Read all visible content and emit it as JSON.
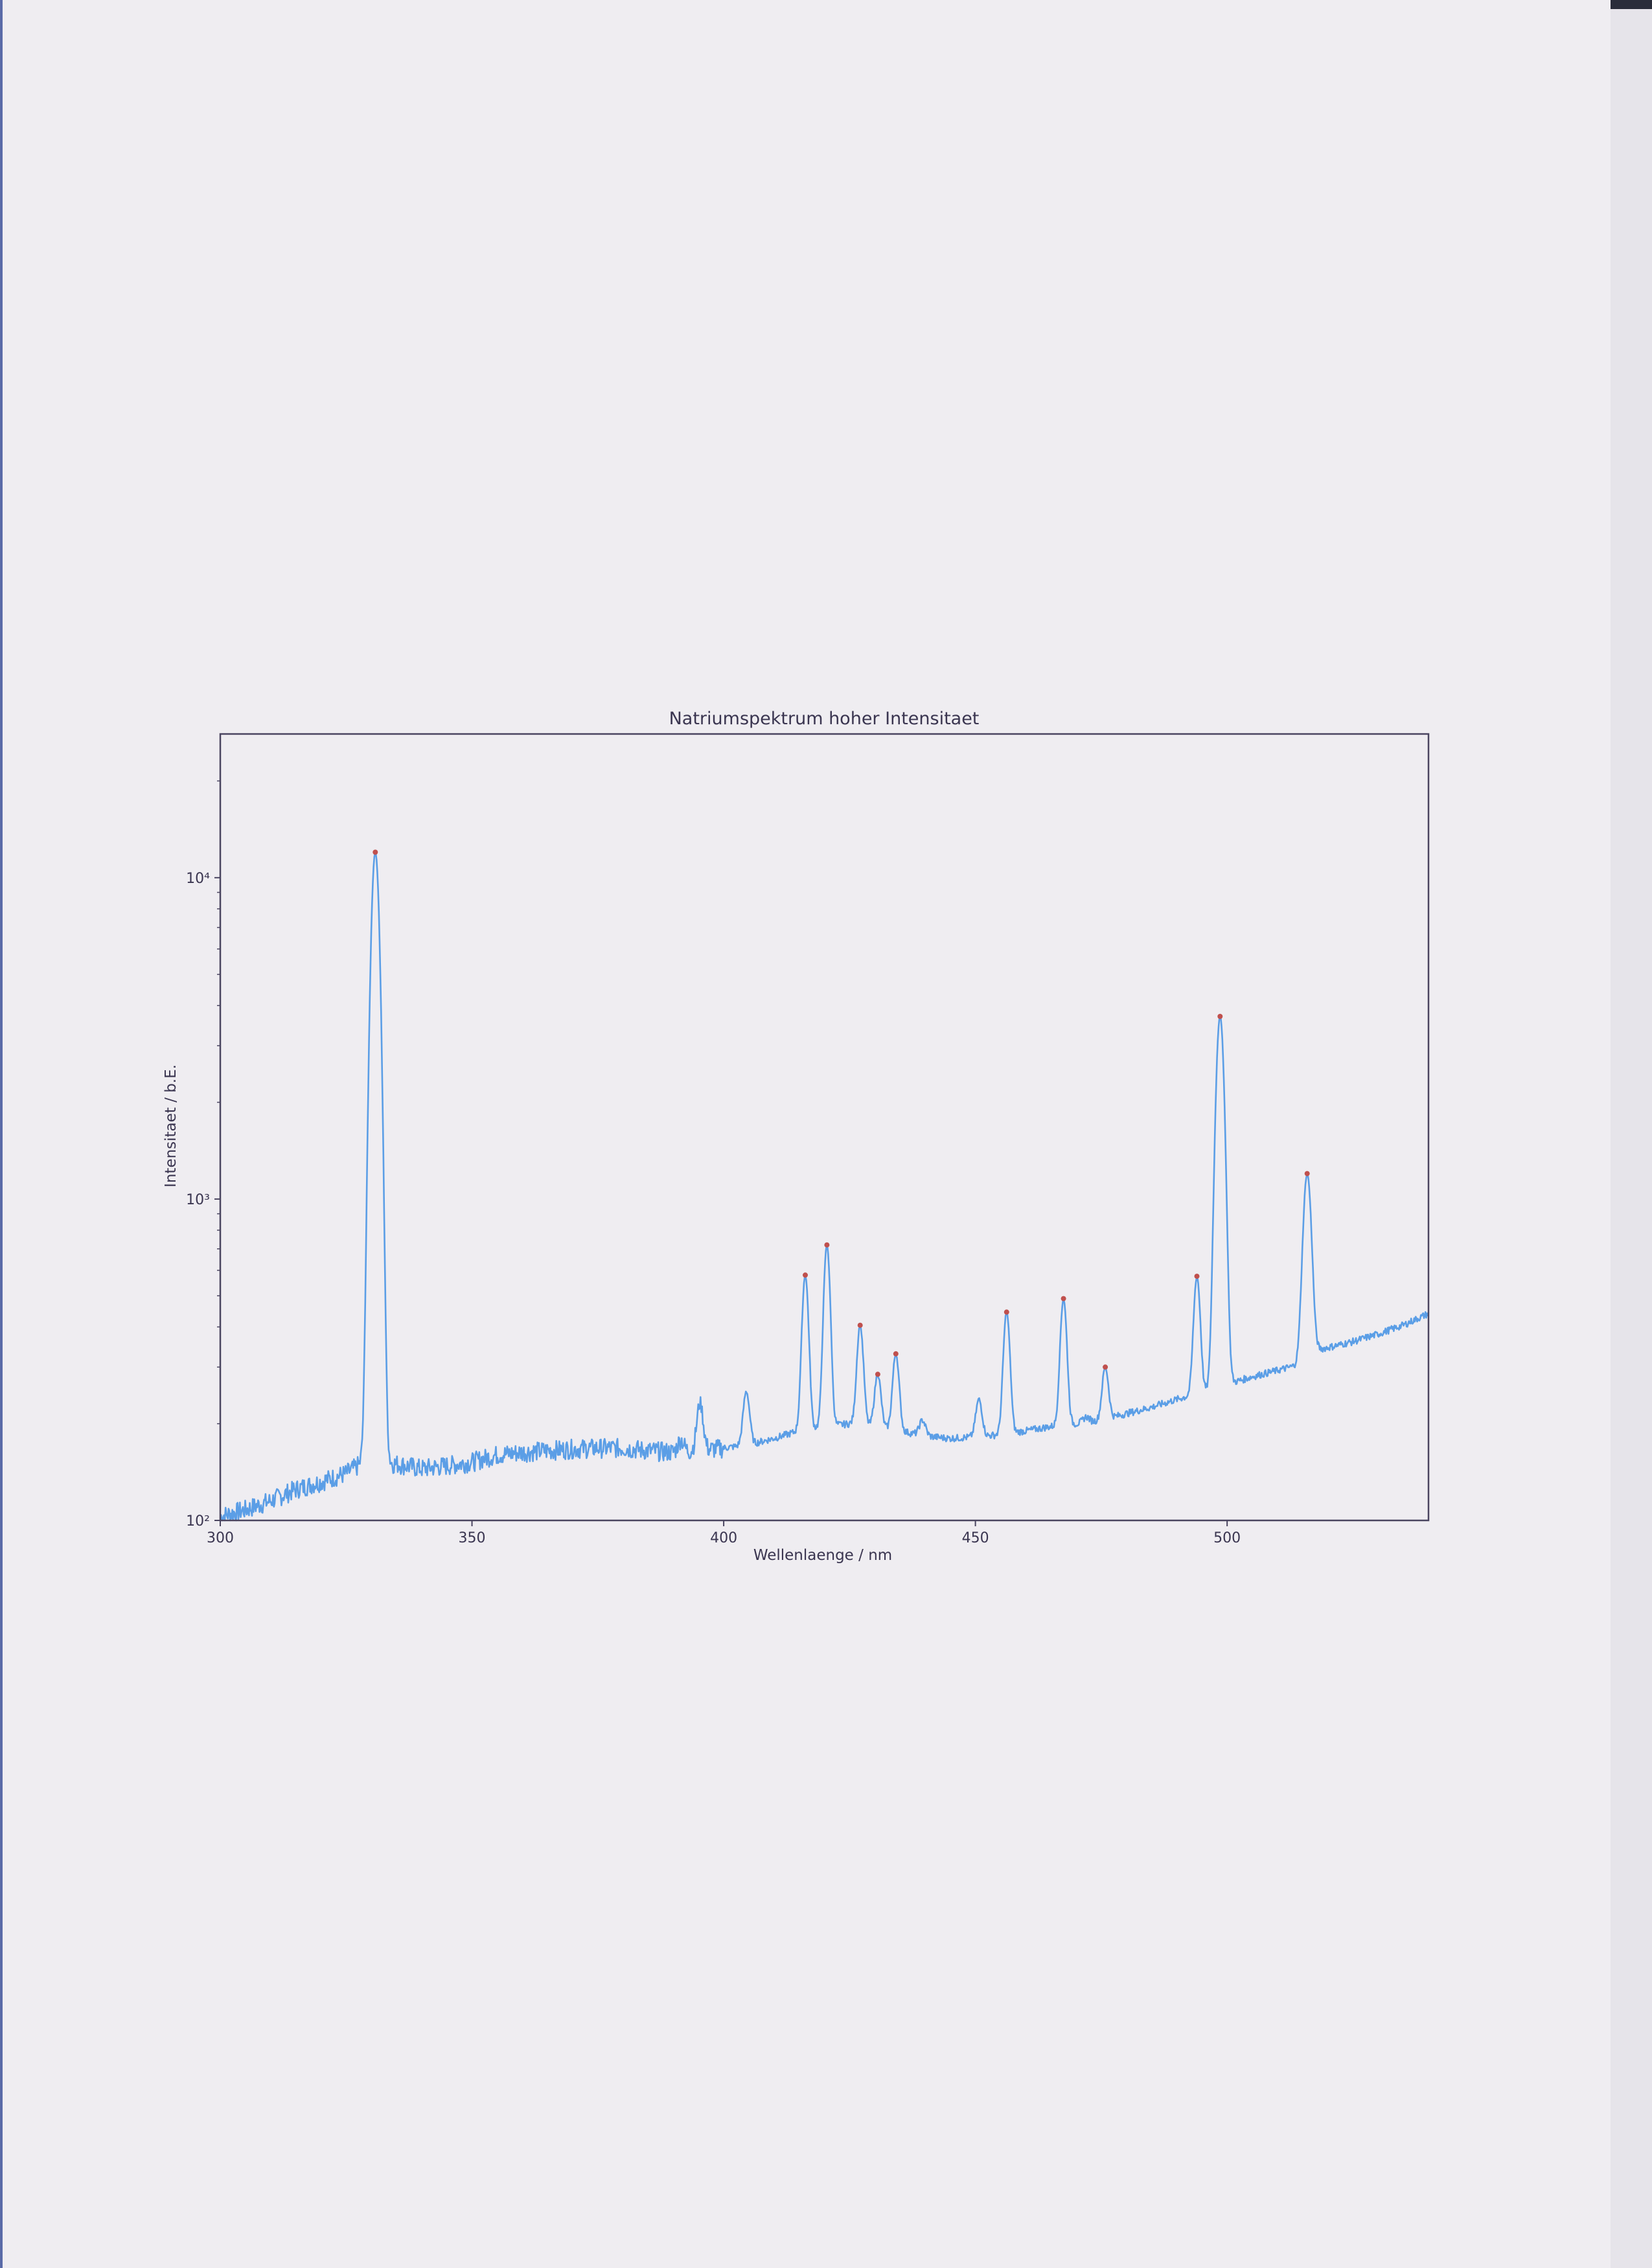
{
  "chart_data": {
    "type": "line",
    "title": "Natriumspektrum hoher Intensitaet",
    "xlabel": "Wellenlaenge / nm",
    "ylabel": "Intensitaet / b.E.",
    "xlim": [
      300,
      540
    ],
    "ylim": [
      100,
      28000
    ],
    "yscale": "log",
    "xticks": [
      300,
      350,
      400,
      450,
      500
    ],
    "xtick_labels": [
      "300",
      "350",
      "400",
      "450",
      "500"
    ],
    "yticks": [
      100,
      1000,
      10000
    ],
    "ytick_labels": [
      "10²",
      "10³",
      "10⁴"
    ],
    "grid": false,
    "line_color": "#5b9ee6",
    "marker_color": "#c0504d",
    "baseline": [
      [
        300,
        103
      ],
      [
        305,
        108
      ],
      [
        310,
        115
      ],
      [
        315,
        125
      ],
      [
        320,
        132
      ],
      [
        325,
        140
      ],
      [
        328,
        150
      ],
      [
        335,
        150
      ],
      [
        340,
        145
      ],
      [
        345,
        148
      ],
      [
        350,
        152
      ],
      [
        355,
        160
      ],
      [
        360,
        163
      ],
      [
        365,
        165
      ],
      [
        370,
        167
      ],
      [
        375,
        168
      ],
      [
        380,
        168
      ],
      [
        385,
        165
      ],
      [
        390,
        163
      ],
      [
        395,
        165
      ],
      [
        400,
        168
      ],
      [
        405,
        172
      ],
      [
        410,
        180
      ],
      [
        415,
        190
      ],
      [
        420,
        196
      ],
      [
        425,
        200
      ],
      [
        430,
        196
      ],
      [
        435,
        190
      ],
      [
        440,
        183
      ],
      [
        445,
        180
      ],
      [
        450,
        182
      ],
      [
        455,
        185
      ],
      [
        460,
        190
      ],
      [
        465,
        196
      ],
      [
        470,
        200
      ],
      [
        475,
        205
      ],
      [
        480,
        215
      ],
      [
        485,
        225
      ],
      [
        490,
        238
      ],
      [
        495,
        250
      ],
      [
        500,
        265
      ],
      [
        505,
        280
      ],
      [
        510,
        293
      ],
      [
        515,
        307
      ],
      [
        518,
        340
      ],
      [
        520,
        345
      ],
      [
        525,
        360
      ],
      [
        530,
        380
      ],
      [
        535,
        405
      ],
      [
        540,
        440
      ]
    ],
    "peaks": [
      {
        "x": 330.8,
        "y": 12000
      },
      {
        "x": 416.2,
        "y": 580
      },
      {
        "x": 420.5,
        "y": 720
      },
      {
        "x": 427.1,
        "y": 405
      },
      {
        "x": 430.6,
        "y": 285
      },
      {
        "x": 434.2,
        "y": 330
      },
      {
        "x": 456.2,
        "y": 445
      },
      {
        "x": 467.5,
        "y": 490
      },
      {
        "x": 475.8,
        "y": 300
      },
      {
        "x": 494.0,
        "y": 575
      },
      {
        "x": 498.6,
        "y": 3700
      },
      {
        "x": 515.9,
        "y": 1200
      }
    ],
    "minor_peaks": [
      {
        "x": 391.5,
        "y": 178
      },
      {
        "x": 395.3,
        "y": 232
      },
      {
        "x": 404.5,
        "y": 252
      },
      {
        "x": 439.5,
        "y": 205
      },
      {
        "x": 450.7,
        "y": 238
      },
      {
        "x": 472.0,
        "y": 210
      }
    ]
  }
}
